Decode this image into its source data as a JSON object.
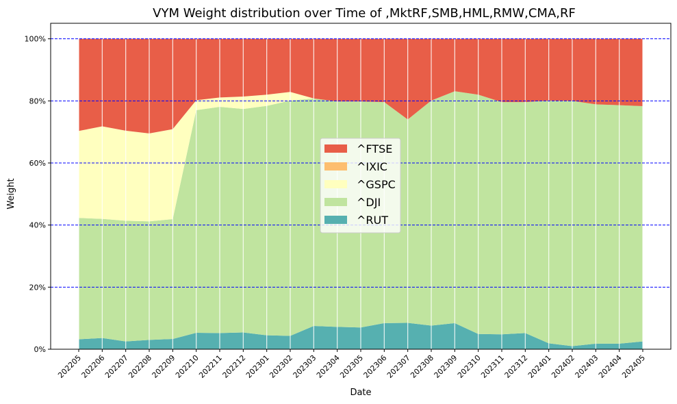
{
  "chart_data": {
    "type": "area",
    "stacked": true,
    "title": "VYM Weight distribution over Time of ,MktRF,SMB,HML,RMW,CMA,RF",
    "xlabel": "Date",
    "ylabel": "Weight",
    "ylim": [
      0,
      1.05
    ],
    "yticks": [
      0,
      0.2,
      0.4,
      0.6,
      0.8,
      1.0
    ],
    "ytick_labels": [
      "0%",
      "20%",
      "40%",
      "60%",
      "80%",
      "100%"
    ],
    "grid": {
      "horizontal": "dashed-blue",
      "vertical": "white"
    },
    "legend_position": "center",
    "categories": [
      "202205",
      "202206",
      "202207",
      "202208",
      "202209",
      "202210",
      "202211",
      "202212",
      "202301",
      "202302",
      "202303",
      "202304",
      "202305",
      "202306",
      "202307",
      "202308",
      "202309",
      "202310",
      "202311",
      "202312",
      "202401",
      "202402",
      "202403",
      "202404",
      "202405"
    ],
    "series": [
      {
        "name": "^RUT",
        "color": "#56b0b0",
        "values": [
          0.032,
          0.036,
          0.025,
          0.03,
          0.033,
          0.053,
          0.052,
          0.054,
          0.045,
          0.043,
          0.075,
          0.072,
          0.07,
          0.084,
          0.085,
          0.076,
          0.084,
          0.049,
          0.048,
          0.052,
          0.019,
          0.01,
          0.018,
          0.018,
          0.025
        ]
      },
      {
        "name": "^DJI",
        "color": "#c0e49f",
        "values": [
          0.391,
          0.384,
          0.389,
          0.382,
          0.386,
          0.717,
          0.729,
          0.72,
          0.739,
          0.758,
          0.733,
          0.726,
          0.728,
          0.712,
          0.655,
          0.725,
          0.747,
          0.771,
          0.748,
          0.744,
          0.782,
          0.79,
          0.771,
          0.768,
          0.758
        ]
      },
      {
        "name": "^GSPC",
        "color": "#ffffbf",
        "values": [
          0.28,
          0.298,
          0.29,
          0.283,
          0.29,
          0.032,
          0.03,
          0.04,
          0.036,
          0.028,
          0.0,
          0.0,
          0.0,
          0.0,
          0.0,
          0.0,
          0.0,
          0.0,
          0.0,
          0.0,
          0.0,
          0.0,
          0.0,
          0.0,
          0.0
        ]
      },
      {
        "name": "^IXIC",
        "color": "#fdbe6f",
        "values": [
          0.0,
          0.0,
          0.0,
          0.0,
          0.0,
          0.0,
          0.0,
          0.0,
          0.0,
          0.0,
          0.0,
          0.0,
          0.0,
          0.0,
          0.0,
          0.0,
          0.0,
          0.0,
          0.0,
          0.0,
          0.0,
          0.0,
          0.0,
          0.0,
          0.0
        ]
      },
      {
        "name": "^FTSE",
        "color": "#e85e48",
        "values": [
          0.297,
          0.282,
          0.296,
          0.305,
          0.291,
          0.198,
          0.189,
          0.186,
          0.18,
          0.171,
          0.192,
          0.202,
          0.202,
          0.204,
          0.26,
          0.199,
          0.169,
          0.18,
          0.204,
          0.204,
          0.199,
          0.2,
          0.211,
          0.214,
          0.217
        ]
      }
    ],
    "legend_order": [
      "^FTSE",
      "^IXIC",
      "^GSPC",
      "^DJI",
      "^RUT"
    ]
  }
}
